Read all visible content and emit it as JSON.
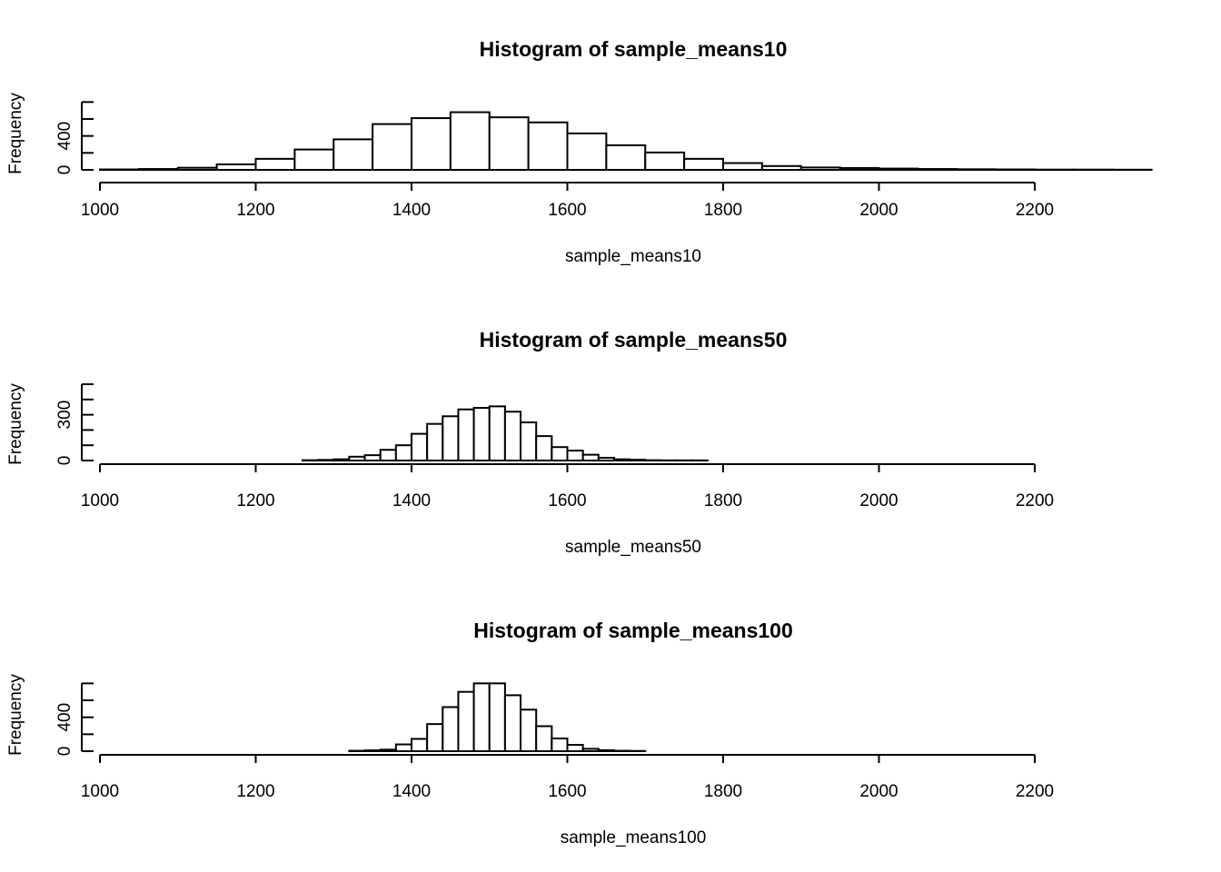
{
  "chart_data": [
    {
      "type": "bar",
      "title": "Histogram of sample_means10",
      "xlabel": "sample_means10",
      "ylabel": "Frequency",
      "bin_width": 50,
      "bins_start": 1000,
      "xlim": [
        1000,
        2200
      ],
      "x_ticks": [
        "1000",
        "1200",
        "1400",
        "1600",
        "1800",
        "2000",
        "2200"
      ],
      "ylim": [
        0,
        900
      ],
      "y_ticks": [
        "0",
        "400"
      ],
      "values": [
        5,
        10,
        25,
        65,
        130,
        240,
        360,
        540,
        610,
        680,
        620,
        560,
        430,
        290,
        205,
        130,
        80,
        45,
        28,
        22,
        15,
        10,
        7,
        5,
        3,
        3,
        2
      ]
    },
    {
      "type": "bar",
      "title": "Histogram of sample_means50",
      "xlabel": "sample_means50",
      "ylabel": "Frequency",
      "bin_width": 20,
      "bins_start": 1260,
      "xlim": [
        1000,
        2200
      ],
      "x_ticks": [
        "1000",
        "1200",
        "1400",
        "1600",
        "1800",
        "2000",
        "2200"
      ],
      "ylim": [
        0,
        500
      ],
      "y_ticks": [
        "0",
        "300"
      ],
      "values": [
        2,
        4,
        8,
        25,
        35,
        70,
        100,
        175,
        240,
        290,
        335,
        345,
        355,
        320,
        250,
        160,
        88,
        65,
        38,
        18,
        8,
        5,
        2,
        1,
        1,
        1
      ]
    },
    {
      "type": "bar",
      "title": "Histogram of sample_means100",
      "xlabel": "sample_means100",
      "ylabel": "Frequency",
      "bin_width": 20,
      "bins_start": 1320,
      "xlim": [
        1000,
        2200
      ],
      "x_ticks": [
        "1000",
        "1200",
        "1400",
        "1600",
        "1800",
        "2000",
        "2200"
      ],
      "ylim": [
        0,
        900
      ],
      "y_ticks": [
        "0",
        "400"
      ],
      "values": [
        5,
        10,
        18,
        80,
        145,
        320,
        520,
        700,
        800,
        800,
        660,
        490,
        295,
        150,
        75,
        28,
        12,
        5,
        3
      ]
    }
  ]
}
